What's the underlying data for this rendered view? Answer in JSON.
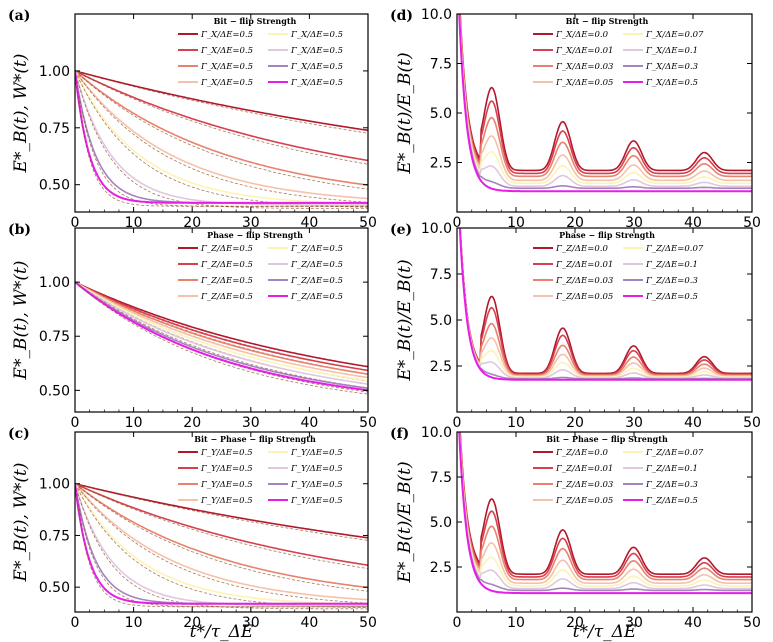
{
  "colors": [
    "#b2182b",
    "#d6404e",
    "#e8826d",
    "#f6c1aa",
    "#fdf3b5",
    "#e0c7df",
    "#a583c0",
    "#e61ee6"
  ],
  "left_ylabel": "E*_B(t), W*(t)",
  "right_ylabel": "E*_B(t)/E_B(t)",
  "xlabel": "t*/τ_ΔE",
  "chart_data": [
    {
      "id": "a",
      "type": "line",
      "panel_label": "(a)",
      "legend_title": "Bit − flip Strength",
      "legend_labels": [
        "Γ_X/ΔE=0.5",
        "Γ_X/ΔE=0.5",
        "Γ_X/ΔE=0.5",
        "Γ_X/ΔE=0.5",
        "Γ_X/ΔE=0.5",
        "Γ_X/ΔE=0.5",
        "Γ_X/ΔE=0.5",
        "Γ_X/ΔE=0.5"
      ],
      "xlim": [
        0,
        50
      ],
      "ylim": [
        0.38,
        1.25
      ],
      "yticks": [
        0.5,
        0.75,
        1.0
      ],
      "ytick_labels": [
        "0.50",
        "0.75",
        "1.00"
      ],
      "xticks": [
        0,
        10,
        20,
        30,
        40,
        50
      ],
      "series_E": [
        {
          "start": 1.0,
          "floor": 0.41,
          "rate": 0.0117
        },
        {
          "start": 1.0,
          "floor": 0.41,
          "rate": 0.022
        },
        {
          "start": 1.0,
          "floor": 0.41,
          "rate": 0.038
        },
        {
          "start": 1.0,
          "floor": 0.41,
          "rate": 0.06
        },
        {
          "start": 1.0,
          "floor": 0.41,
          "rate": 0.09
        },
        {
          "start": 1.0,
          "floor": 0.41,
          "rate": 0.16
        },
        {
          "start": 1.0,
          "floor": 0.42,
          "rate": 0.29
        },
        {
          "start": 1.0,
          "floor": 0.42,
          "rate": 0.41
        }
      ]
    },
    {
      "id": "b",
      "type": "line",
      "panel_label": "(b)",
      "legend_title": "Phase − flip Strength",
      "legend_labels": [
        "Γ_Z/ΔE=0.5",
        "Γ_Z/ΔE=0.5",
        "Γ_Z/ΔE=0.5",
        "Γ_Z/ΔE=0.5",
        "Γ_Z/ΔE=0.5",
        "Γ_Z/ΔE=0.5",
        "Γ_Z/ΔE=0.5",
        "Γ_Z/ΔE=0.5"
      ],
      "xlim": [
        0,
        50
      ],
      "ylim": [
        0.4,
        1.25
      ],
      "yticks": [
        0.5,
        0.75,
        1.0
      ],
      "ytick_labels": [
        "0.50",
        "0.75",
        "1.00"
      ],
      "xticks": [
        0,
        10,
        20,
        30,
        40,
        50
      ],
      "series_E": [
        {
          "start": 1.0,
          "floor": 0.41,
          "rate": 0.0217
        },
        {
          "start": 1.0,
          "floor": 0.41,
          "rate": 0.0235
        },
        {
          "start": 1.0,
          "floor": 0.41,
          "rate": 0.0255
        },
        {
          "start": 1.0,
          "floor": 0.41,
          "rate": 0.0275
        },
        {
          "start": 1.0,
          "floor": 0.41,
          "rate": 0.0295
        },
        {
          "start": 1.0,
          "floor": 0.41,
          "rate": 0.032
        },
        {
          "start": 1.0,
          "floor": 0.41,
          "rate": 0.0355
        },
        {
          "start": 1.0,
          "floor": 0.41,
          "rate": 0.0375
        }
      ]
    },
    {
      "id": "c",
      "type": "line",
      "panel_label": "(c)",
      "legend_title": "Bit − Phase − flip Strength",
      "legend_labels": [
        "Γ_Y/ΔE=0.5",
        "Γ_Y/ΔE=0.5",
        "Γ_Y/ΔE=0.5",
        "Γ_Y/ΔE=0.5",
        "Γ_Y/ΔE=0.5",
        "Γ_Y/ΔE=0.5",
        "Γ_Y/ΔE=0.5",
        "Γ_Y/ΔE=0.5"
      ],
      "xlim": [
        0,
        50
      ],
      "ylim": [
        0.38,
        1.25
      ],
      "yticks": [
        0.5,
        0.75,
        1.0
      ],
      "ytick_labels": [
        "0.50",
        "0.75",
        "1.00"
      ],
      "xticks": [
        0,
        10,
        20,
        30,
        40,
        50
      ],
      "series_E": [
        {
          "start": 1.0,
          "floor": 0.41,
          "rate": 0.0117
        },
        {
          "start": 1.0,
          "floor": 0.41,
          "rate": 0.022
        },
        {
          "start": 1.0,
          "floor": 0.41,
          "rate": 0.038
        },
        {
          "start": 1.0,
          "floor": 0.41,
          "rate": 0.06
        },
        {
          "start": 1.0,
          "floor": 0.41,
          "rate": 0.09
        },
        {
          "start": 1.0,
          "floor": 0.41,
          "rate": 0.16
        },
        {
          "start": 1.0,
          "floor": 0.42,
          "rate": 0.29
        },
        {
          "start": 1.0,
          "floor": 0.42,
          "rate": 0.41
        }
      ]
    },
    {
      "id": "d",
      "type": "line",
      "panel_label": "(d)",
      "legend_title": "Bit − flip Strength",
      "legend_labels": [
        "Γ_X/ΔE=0.0",
        "Γ_X/ΔE=0.01",
        "Γ_X/ΔE=0.03",
        "Γ_X/ΔE=0.05",
        "Γ_X/ΔE=0.07",
        "Γ_X/ΔE=0.1",
        "Γ_X/ΔE=0.3",
        "Γ_X/ΔE=0.5"
      ],
      "xlim": [
        0,
        50
      ],
      "ylim": [
        0,
        10
      ],
      "yticks": [
        2.5,
        5.0,
        7.5,
        10.0
      ],
      "ytick_labels": [
        "2.5",
        "5.0",
        "7.5",
        "10.0"
      ],
      "xticks": [
        0,
        10,
        20,
        30,
        40,
        50
      ],
      "peaks": [
        {
          "base": 2.1,
          "amp": 1.0,
          "offset": 0.0
        },
        {
          "base": 1.95,
          "amp": 0.87,
          "offset": 0.0
        },
        {
          "base": 1.8,
          "amp": 0.7,
          "offset": 0.0
        },
        {
          "base": 1.6,
          "amp": 0.52,
          "offset": 0.0
        },
        {
          "base": 1.45,
          "amp": 0.36,
          "offset": 0.0
        },
        {
          "base": 1.3,
          "amp": 0.22,
          "offset": 0.0
        },
        {
          "base": 1.2,
          "amp": 0.05,
          "offset": 0.0
        },
        {
          "base": 1.05,
          "amp": 0.0,
          "offset": 0.0
        }
      ]
    },
    {
      "id": "e",
      "type": "line",
      "panel_label": "(e)",
      "legend_title": "Phase − flip Strength",
      "legend_labels": [
        "Γ_Z/ΔE=0.0",
        "Γ_Z/ΔE=0.01",
        "Γ_Z/ΔE=0.03",
        "Γ_Z/ΔE=0.05",
        "Γ_Z/ΔE=0.07",
        "Γ_Z/ΔE=0.1",
        "Γ_Z/ΔE=0.3",
        "Γ_Z/ΔE=0.5"
      ],
      "xlim": [
        0,
        50
      ],
      "ylim": [
        0,
        10
      ],
      "yticks": [
        2.5,
        5.0,
        7.5,
        10.0
      ],
      "ytick_labels": [
        "2.5",
        "5.0",
        "7.5",
        "10.0"
      ],
      "xticks": [
        0,
        10,
        20,
        30,
        40,
        50
      ],
      "peaks": [
        {
          "base": 2.1,
          "amp": 1.0,
          "offset": 0.0
        },
        {
          "base": 2.05,
          "amp": 0.86,
          "offset": 0.0
        },
        {
          "base": 2.0,
          "amp": 0.66,
          "offset": 0.0
        },
        {
          "base": 1.95,
          "amp": 0.48,
          "offset": 0.0
        },
        {
          "base": 1.9,
          "amp": 0.32,
          "offset": 0.0
        },
        {
          "base": 1.85,
          "amp": 0.18,
          "offset": 0.0
        },
        {
          "base": 1.8,
          "amp": 0.03,
          "offset": 0.0
        },
        {
          "base": 1.75,
          "amp": 0.0,
          "offset": 0.0
        }
      ]
    },
    {
      "id": "f",
      "type": "line",
      "panel_label": "(f)",
      "legend_title": "Bit − Phase − flip Strength",
      "legend_labels": [
        "Γ_Z/ΔE=0.0",
        "Γ_Z/ΔE=0.01",
        "Γ_Z/ΔE=0.03",
        "Γ_Z/ΔE=0.05",
        "Γ_Z/ΔE=0.07",
        "Γ_Z/ΔE=0.1",
        "Γ_Z/ΔE=0.3",
        "Γ_Z/ΔE=0.5"
      ],
      "xlim": [
        0,
        50
      ],
      "ylim": [
        0,
        10
      ],
      "yticks": [
        2.5,
        5.0,
        7.5,
        10.0
      ],
      "ytick_labels": [
        "2.5",
        "5.0",
        "7.5",
        "10.0"
      ],
      "xticks": [
        0,
        10,
        20,
        30,
        40,
        50
      ],
      "peaks": [
        {
          "base": 2.1,
          "amp": 1.0,
          "offset": 0.0
        },
        {
          "base": 1.95,
          "amp": 0.87,
          "offset": 0.0
        },
        {
          "base": 1.8,
          "amp": 0.7,
          "offset": 0.0
        },
        {
          "base": 1.6,
          "amp": 0.52,
          "offset": 0.0
        },
        {
          "base": 1.45,
          "amp": 0.36,
          "offset": 0.0
        },
        {
          "base": 1.3,
          "amp": 0.22,
          "offset": 0.0
        },
        {
          "base": 1.2,
          "amp": 0.05,
          "offset": 0.0
        },
        {
          "base": 1.05,
          "amp": 0.0,
          "offset": 0.0
        }
      ]
    }
  ]
}
